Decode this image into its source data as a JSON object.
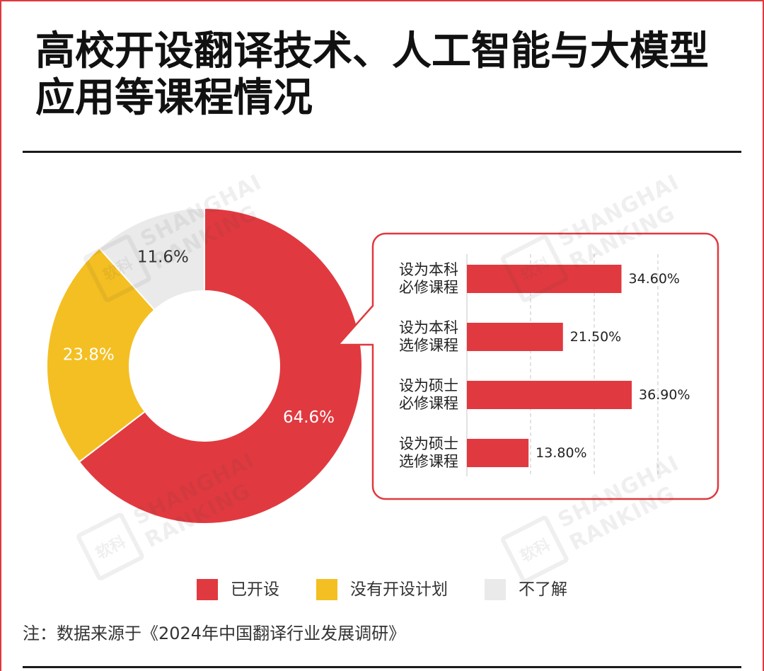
{
  "title": "高校开设翻译技术、人工智能与大模型应用等课程情况",
  "note": "注：数据来源于《2024年中国翻译行业发展调研》",
  "watermark": {
    "logo": "软科",
    "line1": "SHANGHAI",
    "line2": "RANKING"
  },
  "chart_data": [
    {
      "type": "pie",
      "donut": true,
      "legend": "bottom",
      "series": [
        {
          "name": "已开设",
          "value": 64.6,
          "label": "64.6%",
          "color": "#E03A40"
        },
        {
          "name": "没有开设计划",
          "value": 23.8,
          "label": "23.8%",
          "color": "#F4BF22"
        },
        {
          "name": "不了解",
          "value": 11.6,
          "label": "11.6%",
          "color": "#EAEAEA"
        }
      ]
    },
    {
      "type": "bar",
      "orientation": "horizontal",
      "categories": [
        "设为本科\n必修课程",
        "设为本科\n选修课程",
        "设为硕士\n必修课程",
        "设为硕士\n选修课程"
      ],
      "values": [
        34.6,
        21.5,
        36.9,
        13.8
      ],
      "labels": [
        "34.60%",
        "21.50%",
        "36.90%",
        "13.80%"
      ],
      "xlim": [
        0,
        57
      ],
      "grid": true,
      "color": "#E03A40"
    }
  ]
}
